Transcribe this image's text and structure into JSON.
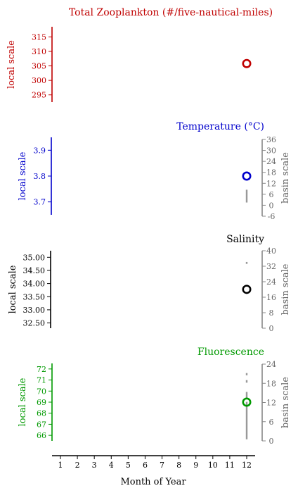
{
  "chart_data": [
    {
      "type": "scatter",
      "title": "Total Zooplankton (#/five-nautical-miles)",
      "color": "#c00000",
      "local_label": "local scale",
      "local_ticks": [
        295,
        300,
        305,
        310,
        315
      ],
      "local_ylim": [
        292.5,
        318.5
      ],
      "value": {
        "month": 12,
        "local": 305.8
      },
      "basin": null
    },
    {
      "type": "scatter",
      "title": "Temperature (°C)",
      "color": "#0000cc",
      "local_label": "local scale",
      "local_ticks": [
        3.7,
        3.8,
        3.9
      ],
      "local_ylim": [
        3.65,
        3.95
      ],
      "value": {
        "month": 12,
        "local": 3.8
      },
      "basin": {
        "label": "basin scale",
        "ticks": [
          -6,
          0,
          6,
          12,
          18,
          24,
          30,
          36
        ],
        "ylim": [
          -6,
          36
        ],
        "ranges": [
          [
            1.5,
            8.5
          ]
        ]
      }
    },
    {
      "type": "scatter",
      "title": "Salinity",
      "color": "#000000",
      "local_label": "local scale",
      "local_ticks": [
        32.5,
        33.0,
        33.5,
        34.0,
        34.5,
        35.0
      ],
      "local_ylim": [
        32.3,
        35.25
      ],
      "value": {
        "month": 12,
        "local": 33.78
      },
      "basin": {
        "label": "basin scale",
        "ticks": [
          0,
          8,
          16,
          24,
          32,
          40
        ],
        "ylim": [
          0,
          40
        ],
        "ranges": [
          [
            33.2,
            34.2
          ]
        ]
      }
    },
    {
      "type": "scatter",
      "title": "Fluorescence",
      "color": "#009900",
      "local_label": "local scale",
      "local_ticks": [
        66,
        67,
        68,
        69,
        70,
        71,
        72
      ],
      "local_ylim": [
        65.5,
        72.5
      ],
      "value": {
        "month": 12,
        "local": 69.0
      },
      "basin": {
        "label": "basin scale",
        "ticks": [
          0,
          6,
          12,
          18,
          24
        ],
        "ylim": [
          0,
          24
        ],
        "ranges": [
          [
            0.5,
            12.2
          ],
          [
            13.3,
            15.3
          ],
          [
            18.2,
            19.0
          ],
          [
            20.5,
            21.2
          ]
        ]
      }
    }
  ],
  "x_axis": {
    "label": "Month of Year",
    "ticks": [
      "1",
      "2",
      "3",
      "4",
      "5",
      "6",
      "7",
      "8",
      "9",
      "10",
      "11",
      "12"
    ]
  }
}
